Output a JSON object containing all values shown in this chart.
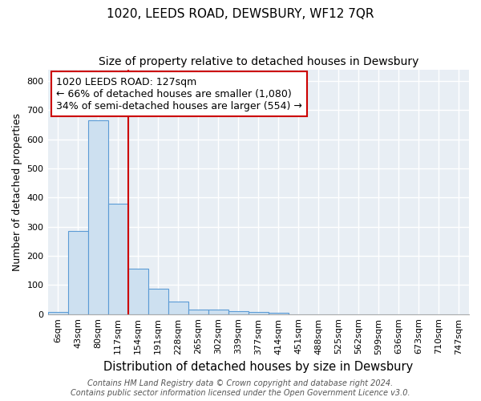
{
  "title": "1020, LEEDS ROAD, DEWSBURY, WF12 7QR",
  "subtitle": "Size of property relative to detached houses in Dewsbury",
  "xlabel": "Distribution of detached houses by size in Dewsbury",
  "ylabel": "Number of detached properties",
  "categories": [
    "6sqm",
    "43sqm",
    "80sqm",
    "117sqm",
    "154sqm",
    "191sqm",
    "228sqm",
    "265sqm",
    "302sqm",
    "339sqm",
    "377sqm",
    "414sqm",
    "451sqm",
    "488sqm",
    "525sqm",
    "562sqm",
    "599sqm",
    "636sqm",
    "673sqm",
    "710sqm",
    "747sqm"
  ],
  "values": [
    8,
    285,
    665,
    380,
    155,
    88,
    42,
    15,
    15,
    10,
    7,
    5,
    0,
    0,
    0,
    0,
    0,
    0,
    0,
    0,
    0
  ],
  "bar_color": "#cde0f0",
  "bar_edge_color": "#5b9bd5",
  "bar_edge_width": 0.8,
  "ylim": [
    0,
    840
  ],
  "yticks": [
    0,
    100,
    200,
    300,
    400,
    500,
    600,
    700,
    800
  ],
  "red_line_x": 3.5,
  "red_line_color": "#cc0000",
  "annotation_text": "1020 LEEDS ROAD: 127sqm\n← 66% of detached houses are smaller (1,080)\n34% of semi-detached houses are larger (554) →",
  "annotation_box_color": "#cc0000",
  "annotation_fontsize": 9,
  "footer_text": "Contains HM Land Registry data © Crown copyright and database right 2024.\nContains public sector information licensed under the Open Government Licence v3.0.",
  "title_fontsize": 11,
  "subtitle_fontsize": 10,
  "xlabel_fontsize": 10.5,
  "ylabel_fontsize": 9,
  "tick_fontsize": 8,
  "footer_fontsize": 7,
  "plot_bg_color": "#e8eef4",
  "fig_bg_color": "#ffffff",
  "grid_color": "#ffffff"
}
